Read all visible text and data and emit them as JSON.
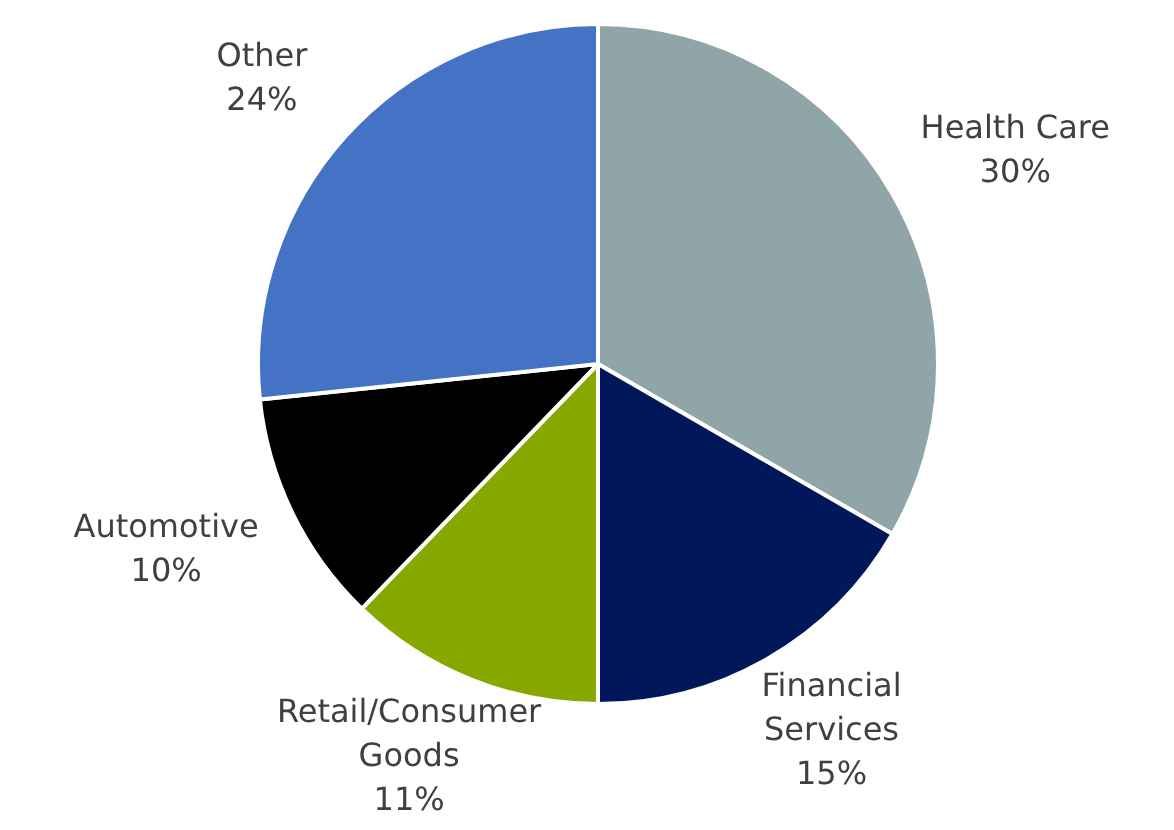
{
  "chart_data": {
    "type": "pie",
    "categories": [
      "Health Care",
      "Financial Services",
      "Retail/Consumer Goods",
      "Automotive",
      "Other"
    ],
    "values": [
      30,
      15,
      11,
      10,
      24
    ],
    "value_labels": [
      "30%",
      "15%",
      "11%",
      "10%",
      "24%"
    ],
    "colors": [
      "#8fa5a8",
      "#00175a",
      "#88a800",
      "#000000",
      "#4472c4"
    ],
    "legend": false
  }
}
